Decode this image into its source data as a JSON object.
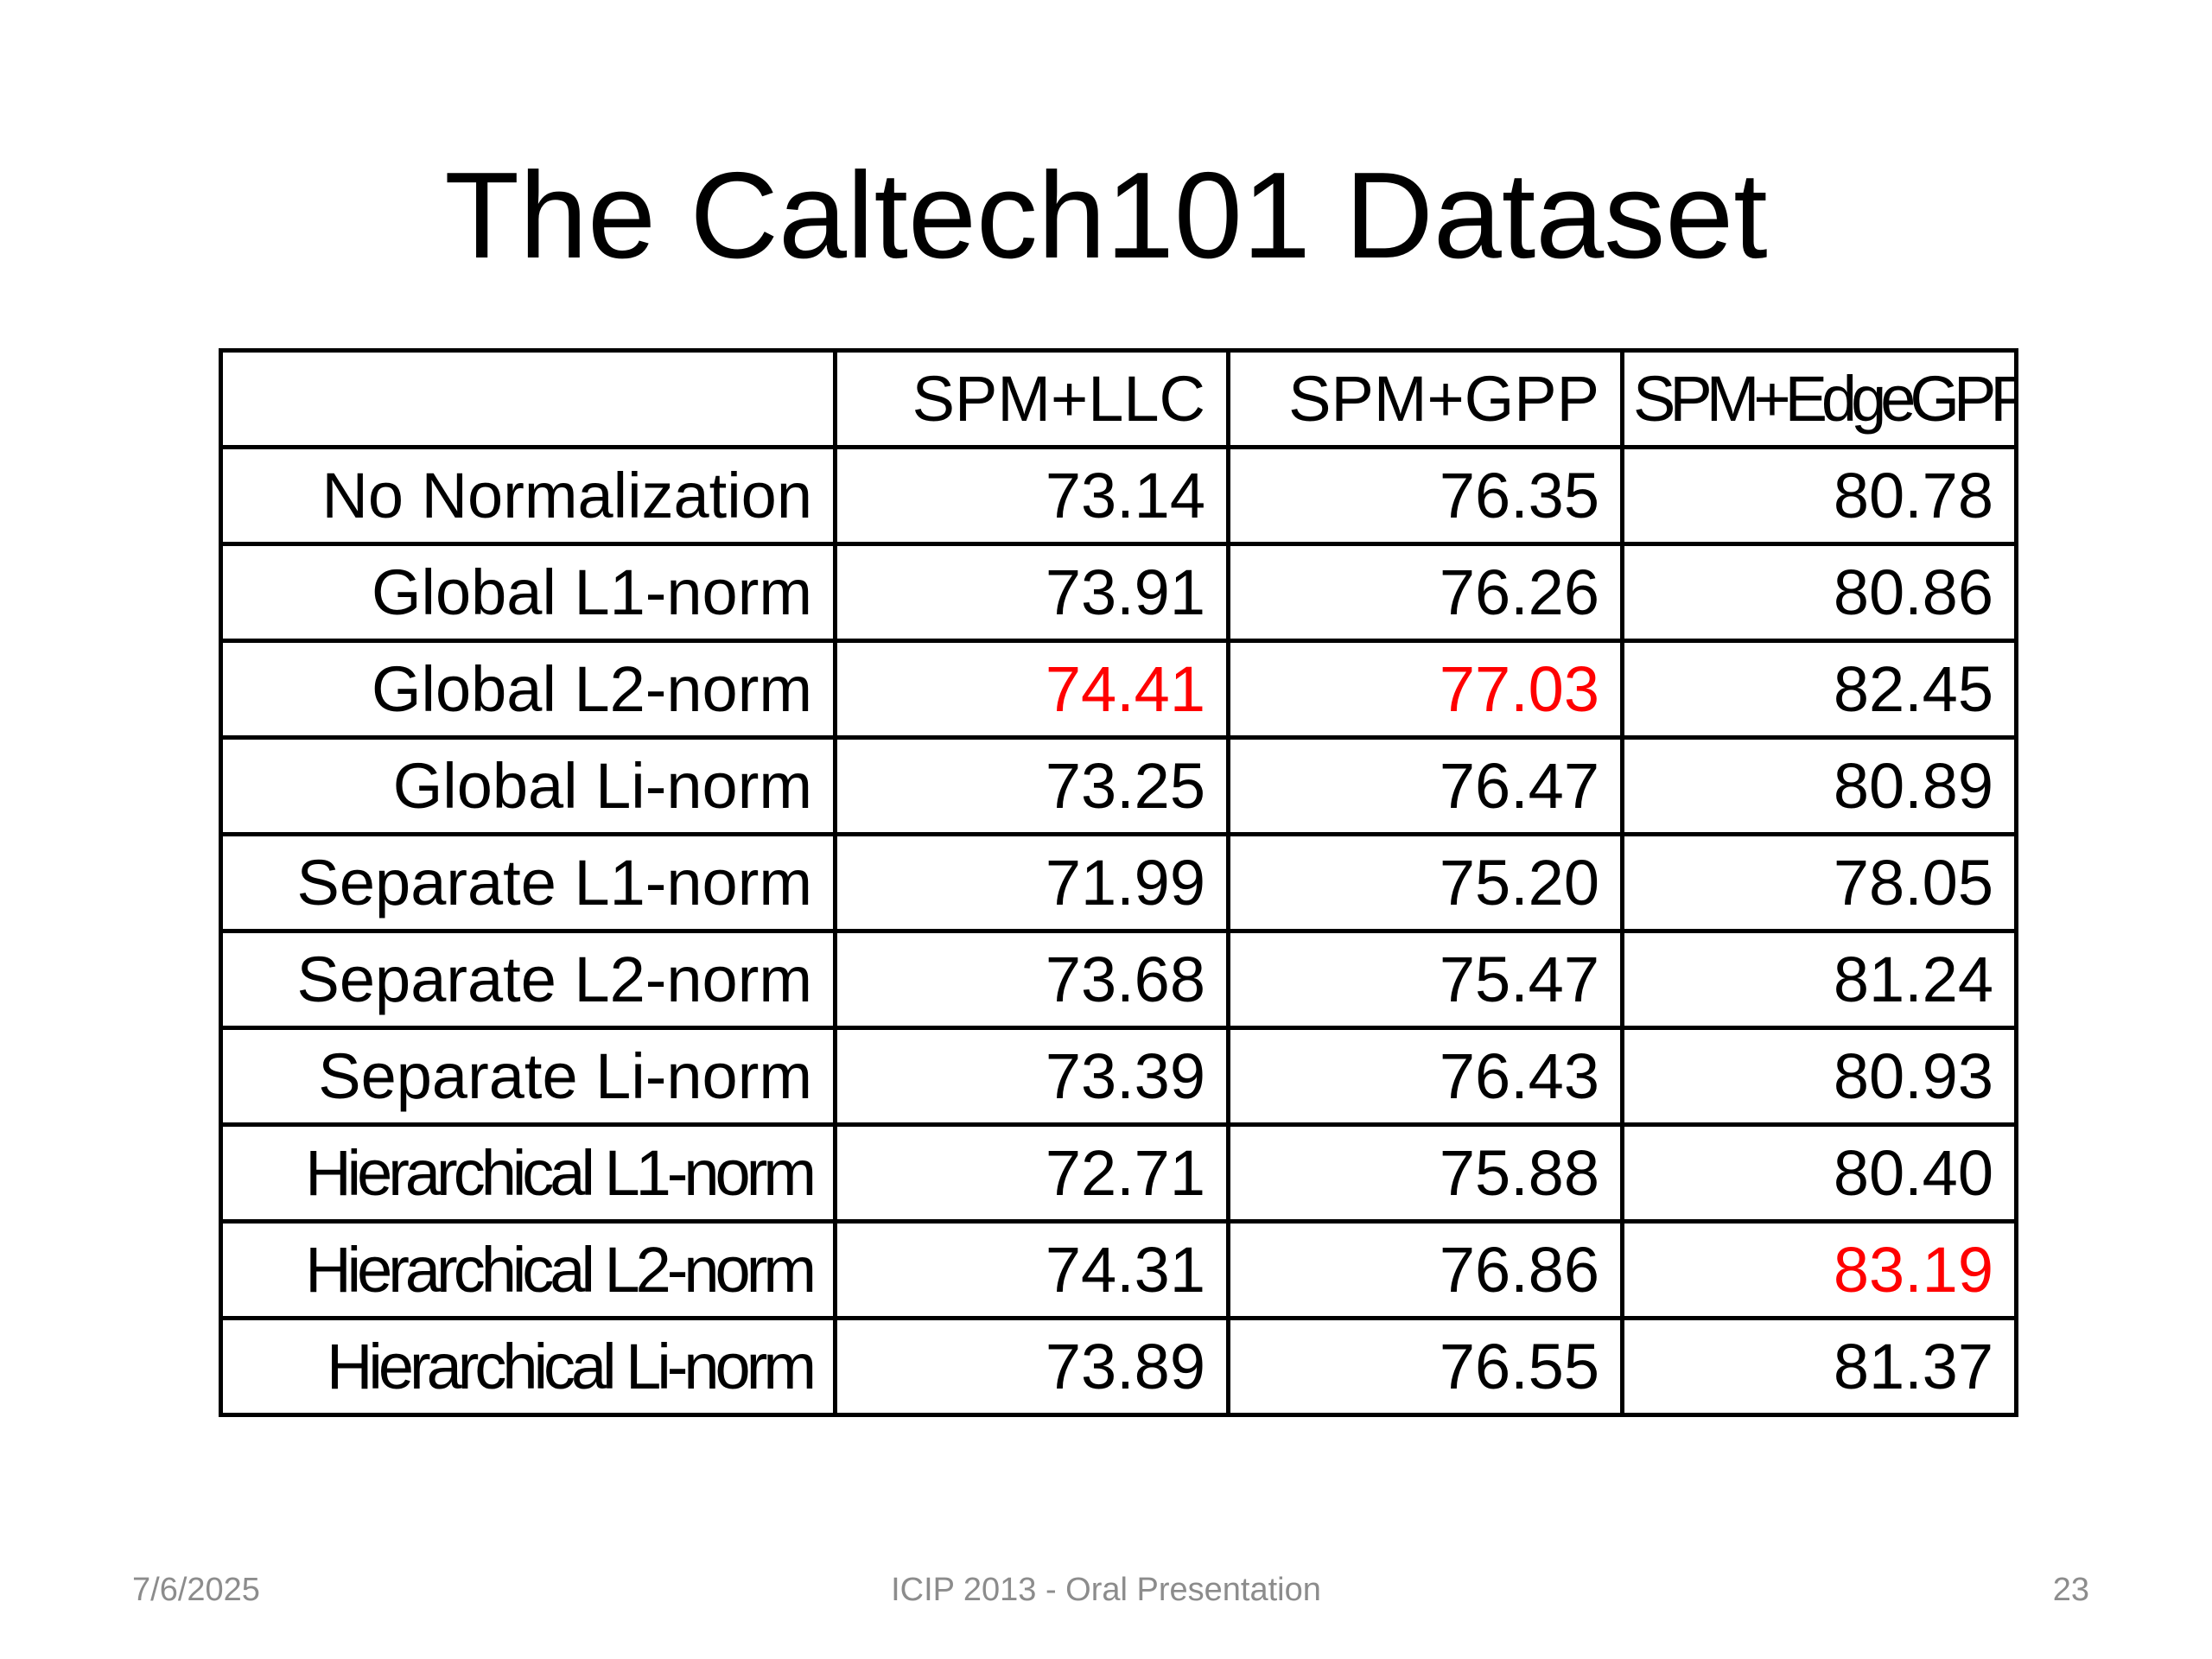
{
  "slide": {
    "title": "The Caltech101 Dataset",
    "highlight_color": "#ff0000"
  },
  "table": {
    "columns": [
      "",
      "SPM+LLC",
      "SPM+GPP",
      "SPM+EdgeGPP"
    ],
    "rows": [
      {
        "label": "No Normalization",
        "values": [
          "73.14",
          "76.35",
          "80.78"
        ]
      },
      {
        "label": "Global L1-norm",
        "values": [
          "73.91",
          "76.26",
          "80.86"
        ]
      },
      {
        "label": "Global L2-norm",
        "values": [
          "74.41",
          "77.03",
          "82.45"
        ]
      },
      {
        "label": "Global Li-norm",
        "values": [
          "73.25",
          "76.47",
          "80.89"
        ]
      },
      {
        "label": "Separate L1-norm",
        "values": [
          "71.99",
          "75.20",
          "78.05"
        ]
      },
      {
        "label": "Separate L2-norm",
        "values": [
          "73.68",
          "75.47",
          "81.24"
        ]
      },
      {
        "label": "Separate Li-norm",
        "values": [
          "73.39",
          "76.43",
          "80.93"
        ]
      },
      {
        "label": "Hierarchical L1-norm",
        "values": [
          "72.71",
          "75.88",
          "80.40"
        ]
      },
      {
        "label": "Hierarchical L2-norm",
        "values": [
          "74.31",
          "76.86",
          "83.19"
        ]
      },
      {
        "label": "Hierarchical Li-norm",
        "values": [
          "73.89",
          "76.55",
          "81.37"
        ]
      }
    ],
    "highlighted_cells": [
      [
        2,
        0
      ],
      [
        2,
        1
      ],
      [
        8,
        2
      ]
    ]
  },
  "footer": {
    "date": "7/6/2025",
    "center": "ICIP 2013 - Oral Presentation",
    "page": "23"
  }
}
